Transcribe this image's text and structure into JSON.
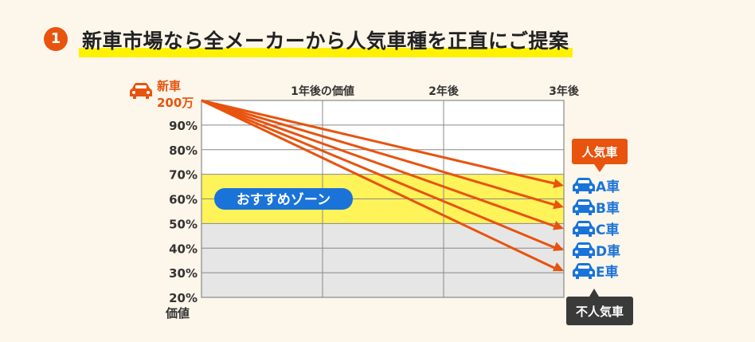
{
  "header": {
    "step_number": "1",
    "title": "新車市場なら全メーカーから人気車種を正直にご提案"
  },
  "chart_data": {
    "type": "line",
    "origin_label_line1": "新車",
    "origin_label_line2": "200万",
    "x_labels": [
      "1年後の価値",
      "2年後",
      "3年後"
    ],
    "y_ticks": [
      "90%",
      "80%",
      "70%",
      "60%",
      "50%",
      "40%",
      "30%",
      "20%"
    ],
    "y_tick_values": [
      90,
      80,
      70,
      60,
      50,
      40,
      30,
      20
    ],
    "ylabel": "価値",
    "ylim": [
      20,
      100
    ],
    "recommended_zone": {
      "label": "おすすめゾーン",
      "from": 50,
      "to": 70
    },
    "series": [
      {
        "name": "A車",
        "start": 100,
        "end": 65
      },
      {
        "name": "B車",
        "start": 100,
        "end": 57
      },
      {
        "name": "C車",
        "start": 100,
        "end": 48
      },
      {
        "name": "D車",
        "start": 100,
        "end": 39
      },
      {
        "name": "E車",
        "start": 100,
        "end": 31
      }
    ],
    "popular_label": "人気車",
    "unpopular_label": "不人気車"
  },
  "colors": {
    "accent": "#e8530e",
    "blue": "#1a73d9",
    "yellow": "#fff35a",
    "gray": "#e6e6e6",
    "dark": "#3a3a3a"
  }
}
